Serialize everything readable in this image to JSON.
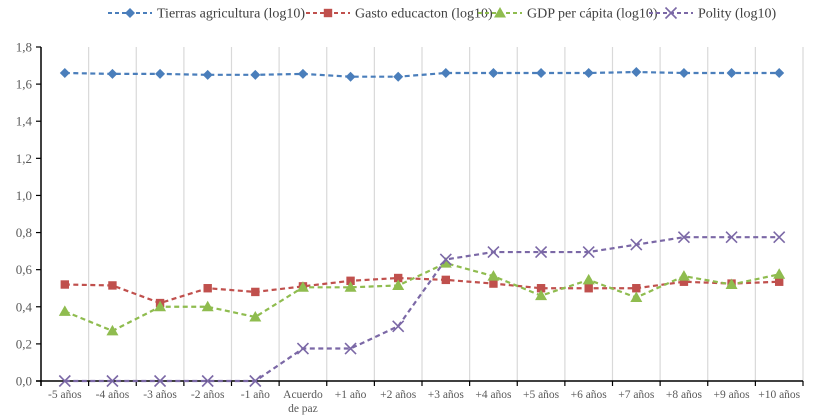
{
  "chart_data": {
    "type": "line",
    "title": "",
    "xlabel": "",
    "ylabel": "",
    "ylim": [
      0,
      1.8
    ],
    "yticks": [
      "0,0",
      "0,2",
      "0,4",
      "0,6",
      "0,8",
      "1,0",
      "1,2",
      "1,4",
      "1,6",
      "1,8"
    ],
    "ytick_values": [
      0,
      0.2,
      0.4,
      0.6,
      0.8,
      1.0,
      1.2,
      1.4,
      1.6,
      1.8
    ],
    "grid": "vertical",
    "legend_position": "top",
    "categories": [
      [
        "-5 años"
      ],
      [
        "-4 años"
      ],
      [
        "-3 años"
      ],
      [
        "-2 años"
      ],
      [
        "-1 año"
      ],
      [
        "Acuerdo",
        "de paz"
      ],
      [
        "+1 año"
      ],
      [
        "+2 años"
      ],
      [
        "+3 años"
      ],
      [
        "+4 años"
      ],
      [
        "+5 años"
      ],
      [
        "+6 años"
      ],
      [
        "+7 años"
      ],
      [
        "+8 años"
      ],
      [
        "+9 años"
      ],
      [
        "+10 años"
      ]
    ],
    "series": [
      {
        "name": "Tierras agricultura (log10)",
        "color": "#4a7ebb",
        "marker": "diamond",
        "values": [
          1.66,
          1.655,
          1.655,
          1.65,
          1.65,
          1.655,
          1.64,
          1.64,
          1.66,
          1.66,
          1.66,
          1.66,
          1.665,
          1.66,
          1.66,
          1.66
        ]
      },
      {
        "name": "Gasto educacton (log10)",
        "color": "#c0504d",
        "marker": "square",
        "values": [
          0.52,
          0.515,
          0.42,
          0.5,
          0.48,
          0.51,
          0.54,
          0.555,
          0.545,
          0.525,
          0.5,
          0.5,
          0.5,
          0.535,
          0.525,
          0.535
        ]
      },
      {
        "name": "GDP per cápita (log10)",
        "color": "#8fbc4f",
        "marker": "triangle",
        "values": [
          0.375,
          0.27,
          0.4,
          0.4,
          0.345,
          0.505,
          0.505,
          0.515,
          0.635,
          0.565,
          0.46,
          0.545,
          0.45,
          0.565,
          0.52,
          0.575
        ]
      },
      {
        "name": "Polity (log10)",
        "color": "#7b68a6",
        "marker": "x",
        "values": [
          0,
          0,
          0,
          0,
          0,
          0.175,
          0.175,
          0.295,
          0.655,
          0.695,
          0.695,
          0.695,
          0.735,
          0.775,
          0.775,
          0.775
        ]
      }
    ]
  }
}
